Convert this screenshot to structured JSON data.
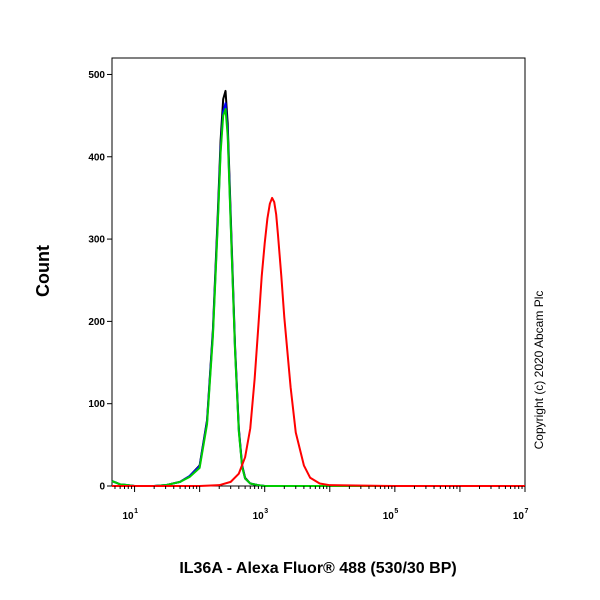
{
  "chart_data": {
    "type": "line",
    "xlabel": "IL36A - Alexa Fluor® 488 (530/30 BP)",
    "ylabel": "Count",
    "x_scale": "log",
    "xlim": [
      4.5,
      10000000
    ],
    "ylim": [
      0,
      520
    ],
    "y_ticks": [
      0,
      100,
      200,
      300,
      400,
      500
    ],
    "x_tick_labels": [
      {
        "base": "10",
        "exp": "1"
      },
      {
        "base": "10",
        "exp": "3"
      },
      {
        "base": "10",
        "exp": "5"
      },
      {
        "base": "10",
        "exp": "7"
      }
    ],
    "annotation": "Copyright (c) 2020 Abcam Plc",
    "grid": false,
    "series": [
      {
        "color": "#000000",
        "x": [
          4.5,
          6,
          8,
          10,
          20,
          30,
          50,
          70,
          100,
          130,
          160,
          190,
          210,
          230,
          250,
          270,
          300,
          350,
          400,
          450,
          500,
          600,
          800,
          1000,
          2000,
          10000,
          100000,
          10000000
        ],
        "y": [
          6,
          2,
          1,
          0,
          0,
          1,
          5,
          12,
          25,
          80,
          190,
          330,
          420,
          470,
          480,
          440,
          330,
          170,
          70,
          25,
          10,
          3,
          1,
          0,
          0,
          0,
          0,
          0
        ]
      },
      {
        "color": "#0000ff",
        "x": [
          4.5,
          6,
          8,
          10,
          20,
          30,
          50,
          70,
          100,
          130,
          160,
          190,
          210,
          230,
          250,
          270,
          300,
          350,
          400,
          450,
          500,
          600,
          800,
          1000,
          2000,
          10000,
          100000,
          10000000
        ],
        "y": [
          6,
          2,
          1,
          0,
          0,
          1,
          5,
          12,
          24,
          78,
          186,
          322,
          410,
          455,
          465,
          430,
          322,
          166,
          68,
          24,
          9,
          3,
          1,
          0,
          0,
          0,
          0,
          0
        ]
      },
      {
        "color": "#00cc00",
        "x": [
          4.5,
          6,
          8,
          10,
          20,
          30,
          50,
          70,
          100,
          130,
          160,
          190,
          210,
          230,
          250,
          270,
          300,
          350,
          400,
          450,
          500,
          600,
          800,
          1000,
          2000,
          10000,
          100000,
          10000000
        ],
        "y": [
          6,
          2,
          1,
          0,
          0,
          1,
          5,
          11,
          22,
          75,
          182,
          318,
          405,
          450,
          458,
          425,
          318,
          164,
          66,
          23,
          9,
          3,
          1,
          0,
          0,
          0,
          0,
          0
        ]
      },
      {
        "color": "#ff0000",
        "x": [
          4.5,
          100,
          200,
          300,
          400,
          500,
          600,
          700,
          800,
          900,
          1000,
          1100,
          1200,
          1300,
          1400,
          1500,
          1600,
          1800,
          2000,
          2500,
          3000,
          4000,
          5000,
          7000,
          10000,
          100000,
          10000000
        ],
        "y": [
          0,
          0,
          1,
          5,
          15,
          35,
          70,
          130,
          195,
          255,
          295,
          325,
          343,
          350,
          345,
          330,
          305,
          255,
          205,
          120,
          65,
          25,
          10,
          3,
          1,
          0,
          0
        ]
      }
    ]
  }
}
